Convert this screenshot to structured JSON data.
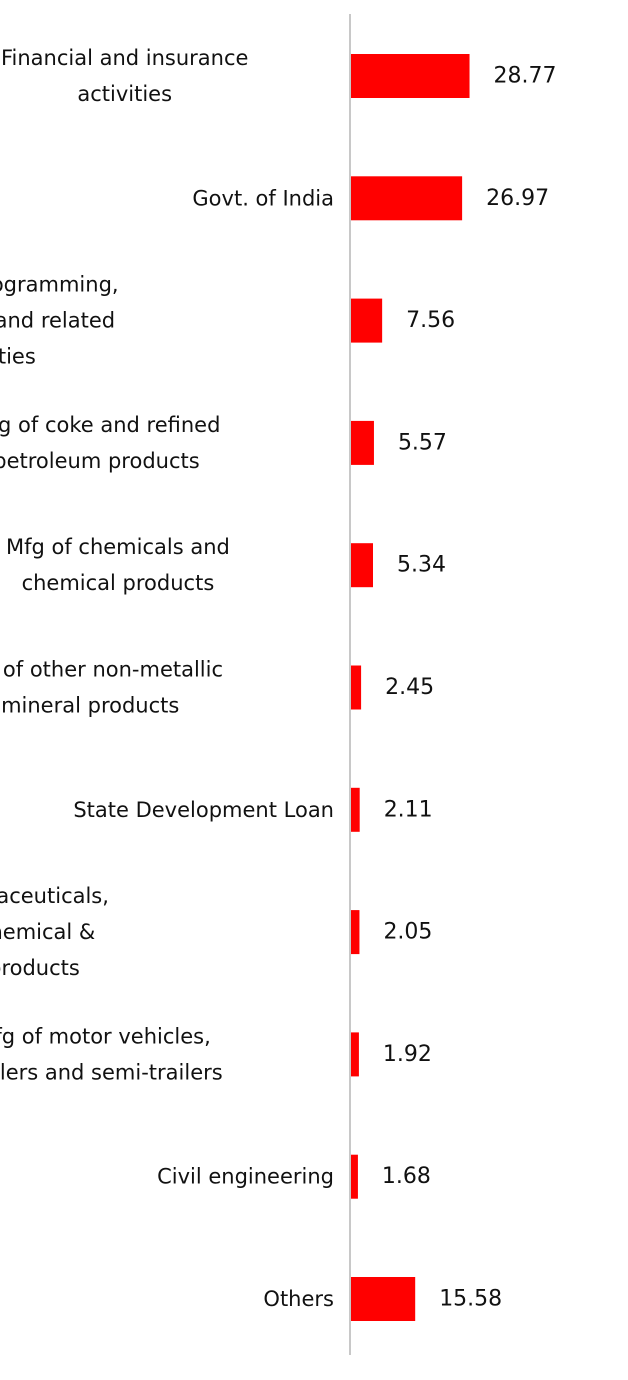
{
  "chart_data": {
    "type": "bar",
    "orientation": "horizontal",
    "categories": [
      [
        "Financial and insurance",
        "activities"
      ],
      [
        "Govt. of India"
      ],
      [
        "Computer programming,",
        "consultancy and related",
        "activities"
      ],
      [
        "Mfg of coke and refined",
        "petroleum products"
      ],
      [
        "Mfg of chemicals and",
        "chemical products"
      ],
      [
        "Mfg of other non-metallic",
        "mineral products"
      ],
      [
        "State Development Loan"
      ],
      [
        "Mfg of pharmaceuticals,",
        "medicinal chemical &",
        "botanical products"
      ],
      [
        "Mfg of motor vehicles,",
        "trailers and semi-trailers"
      ],
      [
        "Civil engineering"
      ],
      [
        "Others"
      ]
    ],
    "values": [
      28.77,
      26.97,
      7.56,
      5.57,
      5.34,
      2.45,
      2.11,
      2.05,
      1.92,
      1.68,
      15.58
    ],
    "value_labels": [
      "28.77",
      "26.97",
      "7.56",
      "5.57",
      "5.34",
      "2.45",
      "2.11",
      "2.05",
      "1.92",
      "1.68",
      "15.58"
    ],
    "bar_color": "#ff0000",
    "axis_color": "#c8c8c8",
    "grid": false,
    "legend": "none"
  }
}
